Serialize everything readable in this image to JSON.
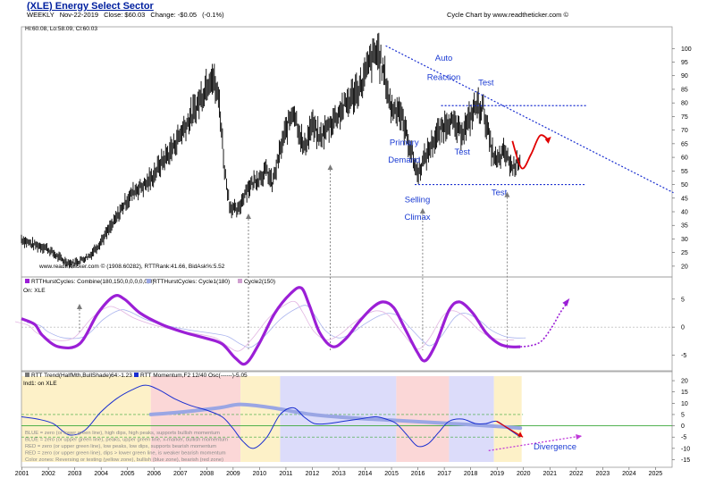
{
  "header": {
    "title": "(XLE) Energy Select Sector",
    "interval": "WEEKLY",
    "date": "Nov-22-2019",
    "close": "Close: $60.03",
    "change": "Change: -$0.05",
    "change_pct": "(-0.1%)",
    "right": "Cycle Chart by www.readtheticker.com ©"
  },
  "colors": {
    "price": "#000000",
    "trend_blue": "#1a2fd0",
    "cycle_combined": "#9b1fd6",
    "forecast_red": "#e00000",
    "momentum_line": "#1a2fd0",
    "trend_band": "#9aa6e4",
    "zone_yellow": "#fdf1c8",
    "zone_blue": "#dcdcfa",
    "zone_red": "#fbd7d7"
  },
  "chart_data": [
    {
      "type": "line",
      "panel": "price",
      "legend": "Hi:60.08, Lo:58.09, Cl:60.03",
      "footer": "www.readtheticker.com © (1908.60282), RTTRank:41.66, BidAsk%:5.52",
      "ylim": [
        18,
        106
      ],
      "yticks": [
        20,
        25,
        30,
        35,
        40,
        45,
        50,
        55,
        60,
        65,
        70,
        75,
        80,
        85,
        90,
        95,
        100
      ],
      "x": [
        2001.0,
        2001.4,
        2001.9,
        2002.3,
        2002.6,
        2002.9,
        2003.2,
        2003.6,
        2004.0,
        2004.5,
        2004.9,
        2005.3,
        2005.7,
        2005.9,
        2006.3,
        2006.7,
        2007.1,
        2007.5,
        2007.8,
        2008.2,
        2008.5,
        2008.7,
        2008.9,
        2009.2,
        2009.5,
        2009.9,
        2010.3,
        2010.5,
        2010.9,
        2011.3,
        2011.7,
        2012.0,
        2012.3,
        2012.6,
        2013.0,
        2013.5,
        2013.9,
        2014.2,
        2014.5,
        2014.8,
        2015.0,
        2015.3,
        2015.6,
        2016.0,
        2016.3,
        2016.6,
        2016.9,
        2017.2,
        2017.6,
        2017.9,
        2018.2,
        2018.5,
        2018.8,
        2019.0,
        2019.3,
        2019.6,
        2019.9
      ],
      "y": [
        30,
        28,
        27,
        24,
        22,
        21,
        22,
        24,
        29,
        36,
        43,
        48,
        50,
        52,
        58,
        63,
        70,
        76,
        82,
        91,
        80,
        55,
        42,
        40,
        48,
        52,
        55,
        50,
        66,
        78,
        63,
        72,
        67,
        71,
        76,
        82,
        87,
        95,
        99,
        88,
        78,
        78,
        68,
        54,
        60,
        66,
        70,
        74,
        69,
        72,
        79,
        78,
        63,
        58,
        62,
        56,
        60
      ],
      "annotations": [
        {
          "text": "Auto",
          "x": 2017.0,
          "y": 95.5
        },
        {
          "text": "Reaction",
          "x": 2017.0,
          "y": 88.5
        },
        {
          "text": "Test",
          "x": 2018.6,
          "y": 86.5
        },
        {
          "text": "Primary",
          "x": 2015.5,
          "y": 64.5
        },
        {
          "text": "Demand",
          "x": 2015.5,
          "y": 58
        },
        {
          "text": "Test",
          "x": 2017.7,
          "y": 61
        },
        {
          "text": "Selling",
          "x": 2016.0,
          "y": 43.5
        },
        {
          "text": "Climax",
          "x": 2016.0,
          "y": 37
        },
        {
          "text": "Test",
          "x": 2019.1,
          "y": 46
        }
      ],
      "trendline_start": [
        2014.8,
        101
      ],
      "trendline_end": [
        2025.7,
        47
      ],
      "resistance_level": 79,
      "support_level": 50,
      "forecast": {
        "x": [
          2019.6,
          2019.95,
          2020.3,
          2020.65,
          2021.0
        ],
        "y": [
          66,
          56,
          61,
          68,
          66
        ]
      }
    },
    {
      "type": "line",
      "panel": "cycles",
      "legend": "RTTHurstCycles: Combine(180,150,0,0,0,0,0,0)",
      "legend2": "RTTHurstCycles: Cycle1(180)",
      "legend3": "Cycle2(150)",
      "legend_sub": "On: XLE",
      "ylim": [
        -7,
        8
      ],
      "yticks": [
        5,
        0,
        -5
      ],
      "x": [
        2001.0,
        2001.5,
        2001.8,
        2002.4,
        2003.2,
        2003.9,
        2004.5,
        2004.9,
        2005.5,
        2006.3,
        2007.2,
        2008.0,
        2008.6,
        2009.1,
        2009.5,
        2010.0,
        2010.6,
        2011.2,
        2011.6,
        2011.9,
        2012.3,
        2012.8,
        2013.3,
        2013.8,
        2014.3,
        2014.7,
        2015.1,
        2015.5,
        2016.0,
        2016.3,
        2016.7,
        2017.2,
        2017.6,
        2018.1,
        2018.6,
        2019.1,
        2019.5,
        2019.9
      ],
      "y": [
        1.5,
        0.5,
        -1.5,
        -3.5,
        -3,
        2.5,
        5.5,
        5,
        2.5,
        0.5,
        -1,
        -2,
        -3,
        -5.5,
        -6.5,
        -3,
        2.5,
        6,
        7,
        4,
        -1,
        -3.5,
        -2,
        1,
        3.5,
        4.5,
        3.5,
        0,
        -4.5,
        -6,
        -3,
        3,
        4.5,
        2.5,
        -1,
        -3,
        -3.5,
        -3.5
      ],
      "forecast": {
        "x": [
          2019.9,
          2020.3,
          2020.7,
          2021.1,
          2021.4,
          2021.7
        ],
        "y": [
          -3.5,
          -3.3,
          -2.5,
          0,
          2.5,
          4.5
        ]
      }
    },
    {
      "type": "line",
      "panel": "momentum",
      "legend": "RTT Trend(HalfMth,BullShade)64:-1.23",
      "legend2": "RTT Momentum,F2 12/40 Osc(------)-5.05",
      "legend_sub": "Ind1: on XLE",
      "ylim": [
        -16,
        22
      ],
      "yticks": [
        20,
        15,
        10,
        5,
        0,
        -5,
        -10,
        -15
      ],
      "x": [
        2001.0,
        2001.6,
        2002.2,
        2002.8,
        2003.4,
        2004.0,
        2004.6,
        2005.2,
        2005.7,
        2006.2,
        2006.8,
        2007.4,
        2008.0,
        2008.6,
        2009.0,
        2009.4,
        2009.8,
        2010.3,
        2010.8,
        2011.3,
        2011.7,
        2012.1,
        2012.6,
        2013.2,
        2013.8,
        2014.4,
        2014.8,
        2015.2,
        2015.6,
        2016.0,
        2016.4,
        2016.8,
        2017.2,
        2017.7,
        2018.2,
        2018.6,
        2019.0,
        2019.4,
        2019.9
      ],
      "y": [
        4,
        3,
        1,
        -4,
        -2,
        6,
        12,
        16,
        18,
        16,
        12,
        9,
        7,
        4,
        -1,
        -7,
        -10,
        -5,
        5,
        8,
        4,
        1,
        1,
        2,
        3,
        4,
        3,
        1,
        -4,
        -9,
        -8,
        -3,
        2,
        3,
        1,
        1,
        2,
        -1,
        -5
      ],
      "trend_band": {
        "x": [
          2005.9,
          2007.0,
          2008.5,
          2009.3,
          2010.5,
          2012.0,
          2013.5,
          2015.0,
          2016.5,
          2018.0,
          2019.3,
          2019.9
        ],
        "y": [
          5,
          6,
          8,
          9.5,
          8,
          5,
          3.5,
          2.5,
          1.5,
          0.5,
          -0.5,
          -1
        ]
      },
      "zones": [
        {
          "from": 2001.0,
          "to": 2005.9,
          "color": "yellow"
        },
        {
          "from": 2005.9,
          "to": 2009.3,
          "color": "red"
        },
        {
          "from": 2009.3,
          "to": 2010.8,
          "color": "yellow"
        },
        {
          "from": 2010.8,
          "to": 2015.2,
          "color": "blue"
        },
        {
          "from": 2015.2,
          "to": 2017.2,
          "color": "red"
        },
        {
          "from": 2017.2,
          "to": 2018.9,
          "color": "blue"
        },
        {
          "from": 2018.9,
          "to": 2019.95,
          "color": "yellow"
        }
      ],
      "divergence_label": "Divergence",
      "notes": [
        "BLUE = zero (or lower green line), high dips, high peaks, supports bullish momentum",
        "BLUE = zero (or upper green line), peaks, upper green line, x-marker, bullish momentum",
        "RED = zero (or upper green line), low peaks, low dips, supports bearish momentum",
        "RED = zero (or upper green line), dips > lower green line, is weaker bearish momentum",
        "Color zones: Reversing or testing (yellow zone), bullish (blue zone), bearish (red zone)"
      ]
    }
  ],
  "x_axis": {
    "years": [
      "2001",
      "2002",
      "2003",
      "2004",
      "2005",
      "2006",
      "2007",
      "2008",
      "2009",
      "2010",
      "2011",
      "2012",
      "2013",
      "2014",
      "2015",
      "2016",
      "2017",
      "2018",
      "2019",
      "2020",
      "2021",
      "2022",
      "2023",
      "2024",
      "2025"
    ]
  }
}
